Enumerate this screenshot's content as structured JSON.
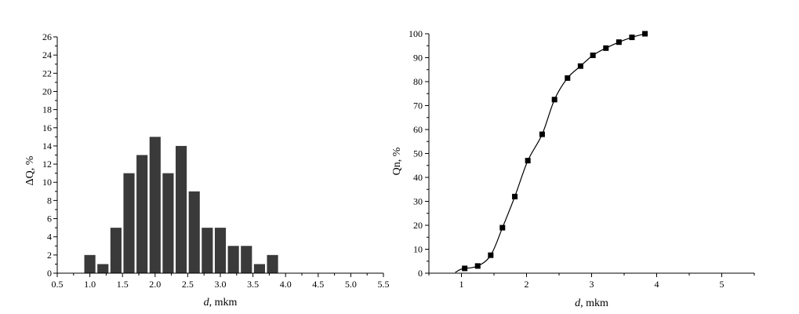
{
  "chart_data": [
    {
      "type": "bar",
      "xlabel_italic": "d",
      "xlabel_rest": ", mkm",
      "ylabel": "ΔQ, %",
      "xlim": [
        0.5,
        5.5
      ],
      "ylim": [
        0,
        26
      ],
      "x_ticks": [
        "0.5",
        "1.0",
        "1.5",
        "2.0",
        "2.5",
        "3.0",
        "3.5",
        "4.0",
        "4.5",
        "5.0",
        "5.5"
      ],
      "y_ticks": [
        "0",
        "2",
        "4",
        "6",
        "8",
        "10",
        "12",
        "14",
        "16",
        "18",
        "20",
        "22",
        "24",
        "26"
      ],
      "bar_width": 0.17,
      "bar_color": "#3a3a3a",
      "x": [
        1.0,
        1.2,
        1.4,
        1.6,
        1.8,
        2.0,
        2.2,
        2.4,
        2.6,
        2.8,
        3.0,
        3.2,
        3.4,
        3.6,
        3.8
      ],
      "values": [
        2,
        1,
        5,
        11,
        13,
        15,
        11,
        14,
        9,
        5,
        5,
        3,
        3,
        1,
        2
      ]
    },
    {
      "type": "line",
      "xlabel_italic": "d",
      "xlabel_rest": ", mkm",
      "ylabel": "Qn, %",
      "xlim": [
        0.5,
        5.5
      ],
      "ylim": [
        0,
        100
      ],
      "x_ticks": [
        "1",
        "2",
        "3",
        "4",
        "5"
      ],
      "y_ticks": [
        "0",
        "10",
        "20",
        "30",
        "40",
        "50",
        "60",
        "70",
        "80",
        "90",
        "100"
      ],
      "marker": "square",
      "series_color": "#000000",
      "x": [
        1.05,
        1.25,
        1.45,
        1.63,
        1.82,
        2.02,
        2.24,
        2.43,
        2.63,
        2.83,
        3.02,
        3.22,
        3.42,
        3.62,
        3.82
      ],
      "values": [
        2,
        3,
        7.5,
        19,
        32,
        47,
        58,
        72.5,
        81.5,
        86.5,
        91,
        94,
        96.5,
        98.5,
        100
      ]
    }
  ]
}
